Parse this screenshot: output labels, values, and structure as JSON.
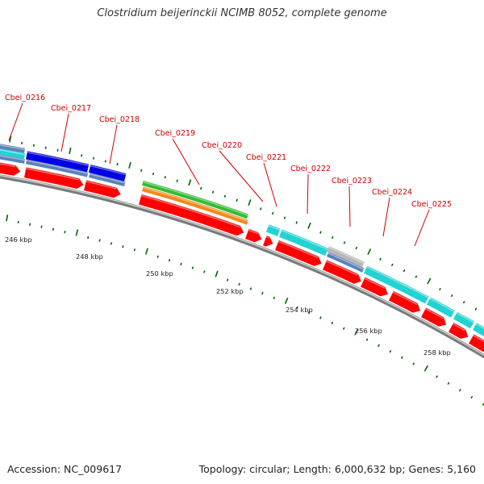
{
  "title": "Clostridium beijerinckii NCIMB 8052, complete genome",
  "footer": {
    "accession": "Accession: NC_009617",
    "summary": "Topology: circular; Length: 6,000,632 bp; Genes: 5,160"
  },
  "colors": {
    "cds": "#ff0000",
    "blue": "#0000e0",
    "steelblue": "#5b82b9",
    "cyan": "#22d3d3",
    "green": "#33bb33",
    "orange": "#f08a1a",
    "gray": "#b8b8b8",
    "backbone": "#7a7a7a",
    "tick": "#006600",
    "label": "#cc0000"
  },
  "gene_labels": [
    "Cbei_0216",
    "Cbei_0217",
    "Cbei_0218",
    "Cbei_0219",
    "Cbei_0220",
    "Cbei_0221",
    "Cbei_0222",
    "Cbei_0223",
    "Cbei_0224",
    "Cbei_0225"
  ],
  "kbp_labels": [
    "246 kbp",
    "248 kbp",
    "250 kbp",
    "252 kbp",
    "254 kbp",
    "256 kbp",
    "258 kbp"
  ]
}
